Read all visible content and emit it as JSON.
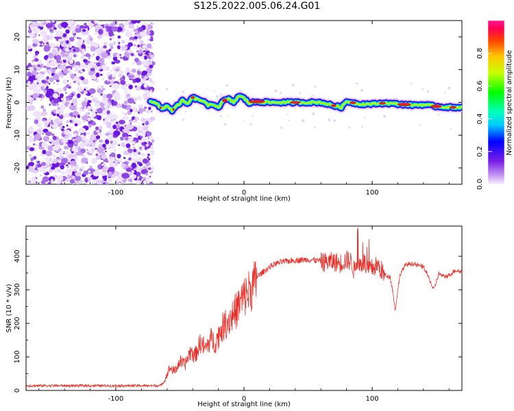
{
  "title": "S125.2022.005.06.24.G01",
  "chart_data": [
    {
      "type": "heatmap",
      "xlabel": "Height of straight line (km)",
      "ylabel": "Frequency (Hz)",
      "xlim": [
        -170,
        170
      ],
      "ylim": [
        -25,
        25
      ],
      "x_ticks": [
        -100,
        0,
        100
      ],
      "y_ticks": [
        -20,
        -10,
        0,
        10,
        20
      ],
      "colorbar": {
        "label": "Normalized spectral amplitude",
        "range": [
          0,
          1
        ],
        "ticks": [
          0.0,
          0.2,
          0.4,
          0.6,
          0.8
        ]
      },
      "noise_region_x": [
        -170,
        -73
      ],
      "ridge": {
        "x": [
          -73,
          -68,
          -64,
          -60,
          -56,
          -52,
          -48,
          -44,
          -40,
          -36,
          -32,
          -28,
          -24,
          -20,
          -16,
          -12,
          -8,
          -4,
          0,
          4,
          10,
          20,
          40,
          60,
          70,
          76,
          80,
          90,
          100,
          110,
          120,
          130,
          140,
          150,
          160,
          170
        ],
        "frequency_hz": [
          0.5,
          -0.5,
          -2,
          -1,
          -2.5,
          -1,
          0.5,
          -0.5,
          1.5,
          0.8,
          0.5,
          -1,
          -0.5,
          -1.5,
          0.5,
          1,
          0,
          2,
          1.3,
          -0.2,
          0.2,
          0,
          0,
          0,
          -1,
          -1.5,
          0.3,
          -0.5,
          -0.5,
          -0.2,
          -0.5,
          -0.8,
          -0.7,
          -1.2,
          -1.5,
          -1.5
        ]
      }
    },
    {
      "type": "line",
      "xlabel": "Height of straight line (km)",
      "ylabel": "SNR (10 * v/v)",
      "xlim": [
        -170,
        170
      ],
      "ylim": [
        0,
        490
      ],
      "x_ticks": [
        -100,
        0,
        100
      ],
      "y_ticks": [
        0,
        100,
        200,
        300,
        400
      ],
      "series": [
        {
          "color": "#e8312b",
          "envelope_x": [
            -170,
            -65,
            -62,
            -58,
            -54,
            -50,
            -46,
            -42,
            -38,
            -34,
            -30,
            -26,
            -22,
            -18,
            -14,
            -10,
            -6,
            -2,
            2,
            6,
            10,
            15,
            20,
            25,
            30,
            40,
            50,
            60,
            70,
            75,
            80,
            84,
            86,
            88,
            90,
            94,
            96,
            100,
            104,
            108,
            110,
            114,
            116,
            118,
            120,
            122,
            126,
            130,
            140,
            145,
            148,
            152,
            156,
            160,
            165,
            170
          ],
          "envelope_y": [
            15,
            15,
            30,
            70,
            60,
            90,
            80,
            120,
            110,
            150,
            130,
            160,
            150,
            190,
            210,
            230,
            250,
            280,
            300,
            320,
            340,
            355,
            370,
            380,
            385,
            390,
            392,
            388,
            390,
            385,
            395,
            390,
            360,
            395,
            380,
            390,
            360,
            370,
            380,
            360,
            345,
            340,
            300,
            240,
            300,
            350,
            375,
            380,
            370,
            330,
            300,
            350,
            340,
            345,
            360,
            355
          ]
        }
      ]
    }
  ]
}
